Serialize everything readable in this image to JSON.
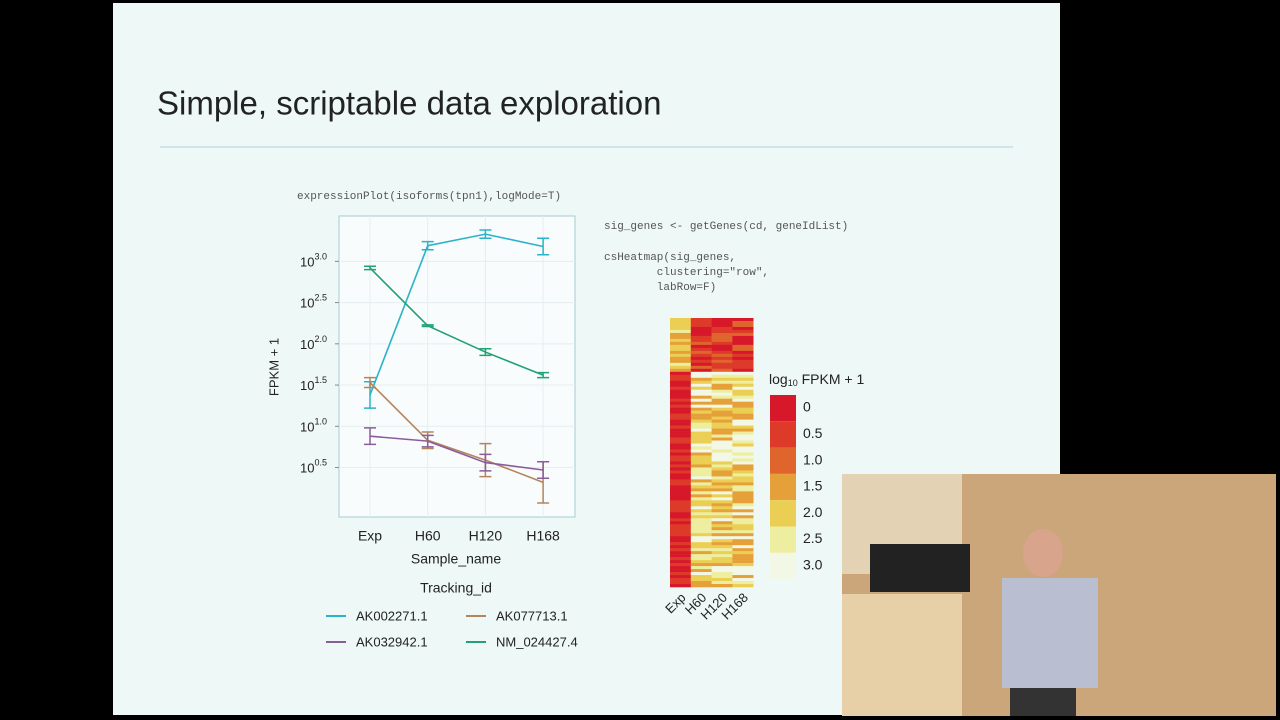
{
  "slide": {
    "title": "Simple, scriptable data exploration",
    "code_left": "expressionPlot(isoforms(tpn1),logMode=T)",
    "code_right": [
      "sig_genes <- getGenes(cd, geneIdList)",
      "csHeatmap(sig_genes,",
      "        clustering=\"row\",",
      "        labRow=F)"
    ]
  },
  "chart_data": {
    "type": "line",
    "categories": [
      "Exp",
      "H60",
      "H120",
      "H168"
    ],
    "xlabel": "Sample_name",
    "ylabel": "FPKM + 1",
    "ytick_base": "10",
    "ylim": [
      -0.1,
      3.55
    ],
    "yticks": [
      {
        "value": 0.5,
        "label": "0.5"
      },
      {
        "value": 1,
        "label": "1.0"
      },
      {
        "value": 1.5,
        "label": "1.5"
      },
      {
        "value": 2,
        "label": "2.0"
      },
      {
        "value": 2.5,
        "label": "2.5"
      },
      {
        "value": 3,
        "label": "3.0"
      }
    ],
    "grid": true,
    "legend_title": "Tracking_id",
    "series": [
      {
        "name": "AK002271.1",
        "color": "#2ab3c8",
        "values": [
          1.38,
          3.19,
          3.33,
          3.18
        ],
        "errors": [
          0.16,
          0.05,
          0.05,
          0.1
        ]
      },
      {
        "name": "AK077713.1",
        "color": "#b5845c",
        "values": [
          1.53,
          0.83,
          0.59,
          0.32
        ],
        "errors": [
          0.06,
          0.1,
          0.2,
          0.25
        ]
      },
      {
        "name": "AK032942.1",
        "color": "#8b5c9c",
        "values": [
          0.88,
          0.82,
          0.56,
          0.47
        ],
        "errors": [
          0.1,
          0.07,
          0.1,
          0.1
        ]
      },
      {
        "name": "NM_024427.4",
        "color": "#22a172",
        "values": [
          2.92,
          2.22,
          1.9,
          1.62
        ],
        "errors": [
          0.02,
          0.01,
          0.04,
          0.03
        ]
      }
    ]
  },
  "heatmap": {
    "columns": [
      "Exp",
      "H60",
      "H120",
      "H168"
    ],
    "legend_title": "log",
    "legend_title_sub": "10",
    "legend_title_rest": " FPKM + 1",
    "scale": [
      {
        "value": 0,
        "color": "#d7182a"
      },
      {
        "value": 0.5,
        "label": "0.5",
        "color": "#dd3a2a"
      },
      {
        "value": 1,
        "label": "1.0",
        "color": "#e0652c"
      },
      {
        "value": 1.5,
        "label": "1.5",
        "color": "#e6a03a"
      },
      {
        "value": 2,
        "label": "2.0",
        "color": "#ebcf55"
      },
      {
        "value": 2.5,
        "label": "2.5",
        "color": "#eeeea0"
      },
      {
        "value": 3,
        "label": "3.0",
        "color": "#f2f7e6"
      }
    ]
  }
}
